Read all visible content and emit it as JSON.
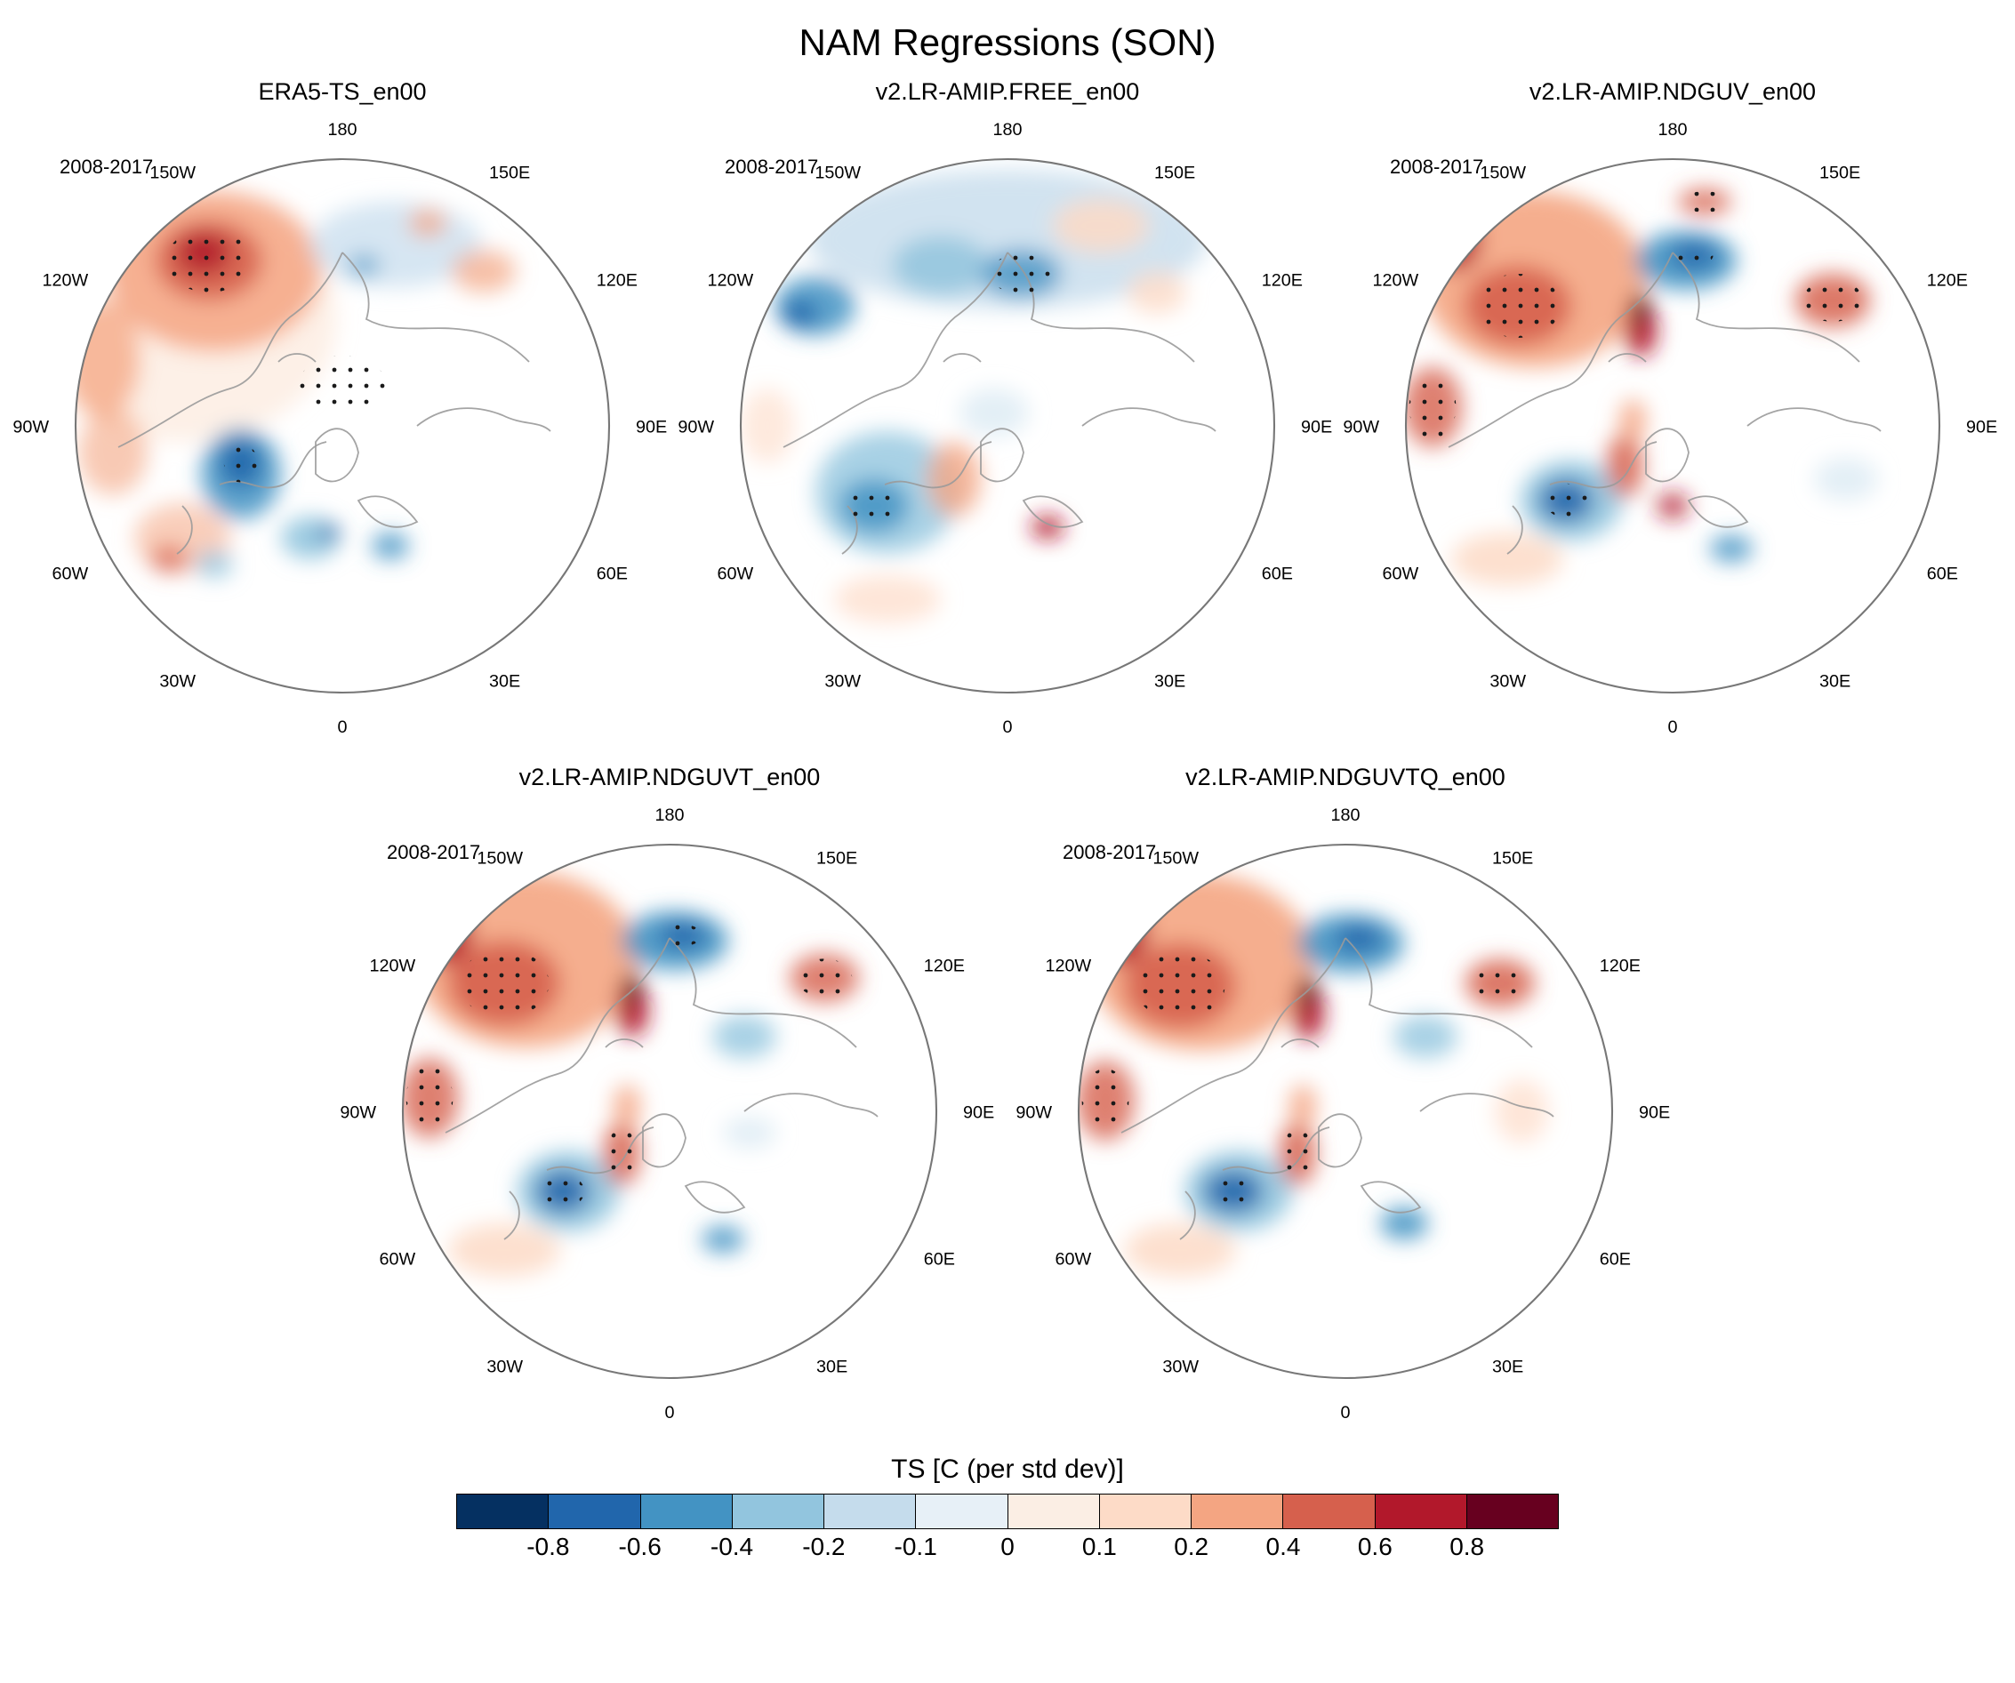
{
  "page": {
    "title": "NAM Regressions (SON)"
  },
  "lon_labels": [
    "180",
    "150E",
    "120E",
    "90E",
    "60E",
    "30E",
    "0",
    "30W",
    "60W",
    "90W",
    "120W",
    "150W"
  ],
  "panels": [
    {
      "title": "ERA5-TS_en00",
      "period": "2008-2017",
      "blobs": [
        [
          60,
          80,
          58,
          46,
          "#fbe3d4",
          0.55,
          0
        ],
        [
          72,
          62,
          40,
          30,
          "#f4a582",
          0.85,
          0
        ],
        [
          70,
          58,
          20,
          15,
          "#d6604d",
          0.9,
          1
        ],
        [
          68,
          55,
          10,
          8,
          "#b2182b",
          0.9,
          0
        ],
        [
          30,
          95,
          14,
          22,
          "#f4a582",
          0.75,
          0
        ],
        [
          34,
          130,
          13,
          16,
          "#f4a582",
          0.6,
          0
        ],
        [
          140,
          52,
          32,
          16,
          "#cfe2f0",
          0.85,
          0
        ],
        [
          152,
          44,
          7,
          5,
          "#f4a582",
          0.8,
          0
        ],
        [
          128,
          60,
          6,
          4,
          "#4393c3",
          0.7,
          0
        ],
        [
          173,
          62,
          12,
          8,
          "#f4a582",
          0.7,
          0
        ],
        [
          82,
          138,
          15,
          17,
          "#4393c3",
          0.85,
          0
        ],
        [
          82,
          134,
          8,
          9,
          "#2166ac",
          0.9,
          1
        ],
        [
          60,
          162,
          18,
          13,
          "#f4a582",
          0.55,
          0
        ],
        [
          55,
          170,
          7,
          5,
          "#d6604d",
          0.7,
          0
        ],
        [
          72,
          172,
          7,
          5,
          "#92c5de",
          0.8,
          0
        ],
        [
          108,
          162,
          11,
          8,
          "#92c5de",
          0.9,
          0
        ],
        [
          115,
          160,
          4,
          3,
          "#2166ac",
          0.95,
          0
        ],
        [
          138,
          165,
          7,
          5,
          "#4393c3",
          0.85,
          0
        ],
        [
          120,
          104,
          20,
          13,
          null,
          0,
          1
        ]
      ]
    },
    {
      "title": "v2.LR-AMIP.FREE_en00",
      "period": "2008-2017",
      "blobs": [
        [
          120,
          50,
          75,
          26,
          "#c6dcec",
          0.8,
          0
        ],
        [
          95,
          60,
          18,
          11,
          "#92c5de",
          0.85,
          0
        ],
        [
          125,
          63,
          15,
          9,
          "#4393c3",
          0.8,
          1
        ],
        [
          48,
          75,
          15,
          11,
          "#4393c3",
          0.85,
          0
        ],
        [
          42,
          78,
          7,
          5,
          "#2166ac",
          0.9,
          0
        ],
        [
          155,
          45,
          18,
          10,
          "#fddbc7",
          0.85,
          0
        ],
        [
          176,
          70,
          11,
          8,
          "#fddbc7",
          0.8,
          0
        ],
        [
          75,
          145,
          27,
          23,
          "#92c5de",
          0.8,
          0
        ],
        [
          70,
          150,
          13,
          10,
          "#4393c3",
          0.85,
          1
        ],
        [
          100,
          140,
          10,
          14,
          "#f4a582",
          0.8,
          0
        ],
        [
          135,
          158,
          6,
          4,
          "#b2182b",
          1,
          0
        ],
        [
          75,
          185,
          20,
          9,
          "#fddbc7",
          0.7,
          0
        ],
        [
          115,
          115,
          13,
          9,
          "#dcebf4",
          0.8,
          0
        ],
        [
          30,
          120,
          10,
          14,
          "#fddbc7",
          0.6,
          0
        ]
      ]
    },
    {
      "title": "v2.LR-AMIP.NDGUV_en00",
      "period": "2008-2017",
      "blobs": [
        [
          68,
          65,
          42,
          33,
          "#f4a582",
          0.9,
          0
        ],
        [
          62,
          75,
          20,
          15,
          "#d6604d",
          0.9,
          1
        ],
        [
          38,
          50,
          10,
          12,
          "#b2182b",
          0.9,
          0
        ],
        [
          108,
          84,
          6,
          10,
          "#b2182b",
          0.95,
          0
        ],
        [
          108,
          76,
          4,
          6,
          "#67001f",
          1,
          0
        ],
        [
          125,
          58,
          19,
          11,
          "#4393c3",
          0.9,
          0
        ],
        [
          128,
          56,
          9,
          5,
          "#2166ac",
          0.9,
          1
        ],
        [
          180,
          73,
          14,
          10,
          "#d6604d",
          0.85,
          1
        ],
        [
          132,
          36,
          10,
          5,
          "#d6604d",
          0.8,
          1
        ],
        [
          30,
          113,
          11,
          15,
          "#d6604d",
          0.8,
          1
        ],
        [
          82,
          148,
          19,
          15,
          "#92c5de",
          0.9,
          0
        ],
        [
          80,
          148,
          10,
          8,
          "#2166ac",
          0.9,
          1
        ],
        [
          102,
          135,
          7,
          12,
          "#d6604d",
          0.85,
          0
        ],
        [
          105,
          118,
          5,
          8,
          "#f4a582",
          0.85,
          0
        ],
        [
          58,
          170,
          21,
          10,
          "#fddbc7",
          0.85,
          0
        ],
        [
          142,
          166,
          8,
          5,
          "#4393c3",
          0.85,
          0
        ],
        [
          185,
          140,
          12,
          8,
          "#dcebf4",
          0.8,
          0
        ],
        [
          120,
          150,
          6,
          5,
          "#b2182b",
          0.8,
          0
        ]
      ]
    },
    {
      "title": "v2.LR-AMIP.NDGUVT_en00",
      "period": "2008-2017",
      "blobs": [
        [
          66,
          63,
          42,
          33,
          "#f4a582",
          0.9,
          0
        ],
        [
          58,
          72,
          21,
          16,
          "#d6604d",
          0.9,
          1
        ],
        [
          36,
          52,
          10,
          13,
          "#b2182b",
          0.9,
          0
        ],
        [
          106,
          82,
          6,
          10,
          "#b2182b",
          0.95,
          0
        ],
        [
          106,
          74,
          4,
          6,
          "#67001f",
          1,
          0
        ],
        [
          122,
          56,
          20,
          11,
          "#4393c3",
          0.9,
          0
        ],
        [
          125,
          54,
          9,
          5,
          "#2166ac",
          0.9,
          1
        ],
        [
          178,
          70,
          13,
          9,
          "#d6604d",
          0.8,
          1
        ],
        [
          30,
          115,
          11,
          15,
          "#d6604d",
          0.8,
          1
        ],
        [
          82,
          150,
          19,
          15,
          "#92c5de",
          0.9,
          0
        ],
        [
          80,
          150,
          10,
          8,
          "#2166ac",
          0.9,
          1
        ],
        [
          102,
          136,
          7,
          12,
          "#d6604d",
          0.85,
          1
        ],
        [
          104,
          118,
          5,
          8,
          "#f4a582",
          0.85,
          0
        ],
        [
          58,
          172,
          21,
          10,
          "#fddbc7",
          0.85,
          0
        ],
        [
          140,
          168,
          8,
          5,
          "#4393c3",
          0.85,
          0
        ],
        [
          150,
          128,
          10,
          6,
          "#dcebf4",
          0.8,
          0
        ],
        [
          148,
          92,
          12,
          8,
          "#92c5de",
          0.8,
          0
        ]
      ]
    },
    {
      "title": "v2.LR-AMIP.NDGUVTQ_en00",
      "period": "2008-2017",
      "blobs": [
        [
          66,
          64,
          42,
          33,
          "#f4a582",
          0.9,
          0
        ],
        [
          58,
          73,
          21,
          16,
          "#d6604d",
          0.9,
          1
        ],
        [
          36,
          52,
          10,
          13,
          "#b2182b",
          0.9,
          0
        ],
        [
          106,
          83,
          6,
          10,
          "#b2182b",
          0.95,
          0
        ],
        [
          106,
          75,
          4,
          6,
          "#67001f",
          1,
          0
        ],
        [
          122,
          57,
          20,
          11,
          "#4393c3",
          0.9,
          0
        ],
        [
          125,
          55,
          9,
          5,
          "#2166ac",
          0.9,
          0
        ],
        [
          178,
          72,
          13,
          9,
          "#d6604d",
          0.85,
          1
        ],
        [
          30,
          116,
          11,
          15,
          "#d6604d",
          0.8,
          1
        ],
        [
          80,
          150,
          20,
          15,
          "#92c5de",
          0.9,
          0
        ],
        [
          78,
          150,
          11,
          8,
          "#2166ac",
          0.9,
          1
        ],
        [
          102,
          136,
          7,
          12,
          "#d6604d",
          0.85,
          1
        ],
        [
          104,
          118,
          5,
          8,
          "#f4a582",
          0.85,
          0
        ],
        [
          58,
          172,
          21,
          10,
          "#fddbc7",
          0.85,
          0
        ],
        [
          142,
          162,
          9,
          6,
          "#4393c3",
          0.9,
          0
        ],
        [
          150,
          92,
          12,
          8,
          "#92c5de",
          0.8,
          0
        ],
        [
          186,
          120,
          10,
          12,
          "#fddbc7",
          0.7,
          0
        ]
      ]
    }
  ],
  "colorbar": {
    "title": "TS [C (per std dev)]",
    "ticks": [
      "-0.8",
      "-0.6",
      "-0.4",
      "-0.2",
      "-0.1",
      "0",
      "0.1",
      "0.2",
      "0.4",
      "0.6",
      "0.8"
    ],
    "colors": [
      "#053061",
      "#2166ac",
      "#4393c3",
      "#92c5de",
      "#c5dcec",
      "#e7f0f7",
      "#fbeee4",
      "#fddbc7",
      "#f4a582",
      "#d6604d",
      "#b2182b",
      "#67001f"
    ]
  },
  "chart_data": {
    "type": "heatmap",
    "subtype": "north-polar-stereographic map panels (filled contours with stippling)",
    "figure_title": "NAM Regressions (SON)",
    "variable": "TS",
    "units": "C (per std dev)",
    "season": "SON",
    "period": "2008-2017",
    "contour_levels": [
      -0.8,
      -0.6,
      -0.4,
      -0.2,
      -0.1,
      0,
      0.1,
      0.2,
      0.4,
      0.6,
      0.8
    ],
    "palette": [
      "#053061",
      "#2166ac",
      "#4393c3",
      "#92c5de",
      "#c5dcec",
      "#e7f0f7",
      "#fbeee4",
      "#fddbc7",
      "#f4a582",
      "#d6604d",
      "#b2182b",
      "#67001f"
    ],
    "longitude_labels": [
      "180",
      "150E",
      "120E",
      "90E",
      "60E",
      "30E",
      "0",
      "30W",
      "60W",
      "90W",
      "120W",
      "150W"
    ],
    "legend_position": "bottom horizontal colorbar",
    "panels": [
      {
        "name": "ERA5-TS_en00",
        "notable_features": [
          "strong warm regression (0.4 to >0.8) over the central North Pacific with stippled core",
          "noisy small-scale warm/cold pattern in the western North Pacific near 180",
          "cold regression (-0.4 to -0.8) over Hudson Bay / eastern Canada",
          "mixed warm and cold small-scale anomalies over the North Atlantic",
          "cold patch (-0.4 to -0.6) over Scandinavia / Baltic",
          "stippled near-zero region over the central Arctic Ocean"
        ]
      },
      {
        "name": "v2.LR-AMIP.FREE_en00",
        "notable_features": [
          "weak cold regression (-0.1 to -0.4) along the Arctic coast of Siberia and Alaska",
          "cold pool (-0.2 to -0.6, partly stippled) over the subpolar North Atlantic",
          "localized strong warm spot (>0.6) near the Black/Caspian Sea region",
          "weak warm anomalies (0.1-0.2) in the mid-latitude North Pacific and near 150E"
        ]
      },
      {
        "name": "v2.LR-AMIP.NDGUV_en00",
        "notable_features": [
          "strong warm regression (0.4 to >0.8, stippled) over the North Pacific / Gulf of Alaska",
          "deep warm maximum (>0.8) near the Bering Strait / Chukchi region",
          "cold band (-0.4 to -0.8, stippled core) over the East Siberian Arctic sector",
          "warm stippled patches near 120E mid-latitudes and near 90W",
          "cold pool (-0.4 to -0.8, stippled) south of Greenland in the North Atlantic",
          "warm regression along Baffin Bay / west Greenland; small cold patch near the Caspian"
        ]
      },
      {
        "name": "v2.LR-AMIP.NDGUVT_en00",
        "notable_features": [
          "strong warm North Pacific regression (0.4 to >0.8) with dark warm core near Bering Strait",
          "cold anomaly (-0.4 to -0.8) over the East Siberian / Laptev sector",
          "stippled cold pool south of Greenland (-0.4 to -0.8)",
          "warm stippled patch near 90W and along west Greenland",
          "small cold patches over eastern Europe / Caspian region"
        ]
      },
      {
        "name": "v2.LR-AMIP.NDGUVTQ_en00",
        "notable_features": [
          "pattern very similar to NDGUVT: strong warm North Pacific regression with Bering Strait maximum",
          "cold anomaly over the East Siberian Arctic (-0.4 to -0.8)",
          "stippled cold pool south of Greenland",
          "warm stippled patch near 120E and near 90W",
          "small cold patch near the Caspian / Black Sea area"
        ]
      }
    ]
  }
}
